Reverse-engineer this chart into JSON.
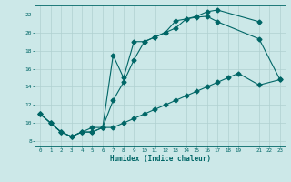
{
  "xlabel": "Humidex (Indice chaleur)",
  "bg_color": "#cce8e8",
  "grid_color": "#b0d0d0",
  "line_color": "#006666",
  "xlim": [
    -0.5,
    23.5
  ],
  "ylim": [
    7.5,
    23.0
  ],
  "xtick_pos": [
    0,
    1,
    2,
    3,
    4,
    5,
    6,
    7,
    8,
    9,
    10,
    11,
    12,
    13,
    14,
    15,
    16,
    17,
    18,
    19,
    21,
    22,
    23
  ],
  "xtick_labels": [
    "0",
    "1",
    "2",
    "3",
    "4",
    "5",
    "6",
    "7",
    "8",
    "9",
    "10",
    "11",
    "12",
    "13",
    "14",
    "15",
    "16",
    "17",
    "18",
    "19",
    "21",
    "22",
    "23"
  ],
  "ytick_pos": [
    8,
    10,
    12,
    14,
    16,
    18,
    20,
    22
  ],
  "ytick_labels": [
    "8",
    "10",
    "12",
    "14",
    "16",
    "18",
    "20",
    "22"
  ],
  "curve_top_x": [
    0,
    1,
    2,
    3,
    4,
    5,
    6,
    7,
    8,
    9,
    10,
    11,
    12,
    13,
    14,
    15,
    16,
    17,
    21
  ],
  "curve_top_y": [
    11,
    10,
    9,
    8.5,
    9,
    9.5,
    9.5,
    12.5,
    14.5,
    17,
    19,
    19.5,
    20,
    20.5,
    21.5,
    21.8,
    22.3,
    22.5,
    21.2
  ],
  "curve_mid_x": [
    0,
    1,
    2,
    3,
    4,
    5,
    6,
    7,
    8,
    9,
    10,
    11,
    12,
    13,
    14,
    15,
    16,
    17,
    21,
    23
  ],
  "curve_mid_y": [
    11,
    10,
    9,
    8.5,
    9,
    9,
    9.5,
    17.5,
    15,
    19,
    19,
    19.5,
    20,
    21.3,
    21.5,
    21.7,
    21.8,
    21.2,
    19.3,
    14.8
  ],
  "curve_bot_x": [
    0,
    1,
    2,
    3,
    4,
    5,
    6,
    7,
    8,
    9,
    10,
    11,
    12,
    13,
    14,
    15,
    16,
    17,
    18,
    19,
    21,
    23
  ],
  "curve_bot_y": [
    11,
    10,
    9,
    8.5,
    9,
    9,
    9.5,
    9.5,
    10,
    10.5,
    11,
    11.5,
    12,
    12.5,
    13,
    13.5,
    14,
    14.5,
    15,
    15.5,
    14.2,
    14.8
  ]
}
